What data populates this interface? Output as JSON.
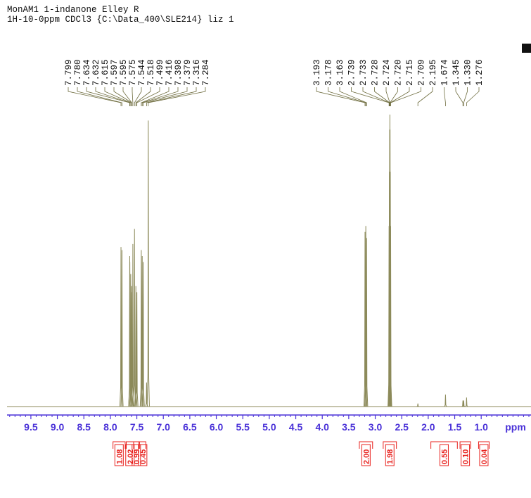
{
  "chart_data": {
    "type": "spectrum",
    "title": "MonAM1 1-indanone Elley R",
    "subtitle": "1H-10-0ppm CDCl3 {C:\\Data_400\\SLE214} liz 1",
    "x": [
      7.799,
      {
        "value": 7.78,
        "label": "7.780"
      },
      7.634,
      7.632,
      7.615,
      7.597,
      7.595,
      7.575,
      7.544,
      7.518,
      7.499,
      7.416,
      7.398,
      7.379,
      7.316,
      7.284,
      3.193,
      3.178,
      3.163,
      2.739,
      2.733,
      2.728,
      2.724,
      {
        "value": 2.72,
        "label": "2.720"
      },
      2.715,
      2.709,
      2.195,
      1.674,
      1.345,
      {
        "value": 1.33,
        "label": "1.330"
      },
      1.276
    ],
    "values": [
      53,
      52,
      50,
      48,
      44,
      40,
      38,
      54,
      59,
      40,
      38,
      52,
      50,
      48,
      8,
      95,
      58,
      60,
      56,
      60,
      78,
      92,
      97,
      92,
      78,
      60,
      1,
      4,
      2,
      2,
      3
    ],
    "color": "#8c8a5a",
    "xlabel": "ppm",
    "xlim": [
      9.95,
      0.06
    ],
    "ylim": [
      0,
      100
    ],
    "xticks": [
      9.5,
      {
        "value": 9,
        "label": "9.0"
      },
      8.5,
      {
        "value": 8,
        "label": "8.0"
      },
      7.5,
      {
        "value": 7,
        "label": "7.0"
      },
      6.5,
      {
        "value": 6,
        "label": "6.0"
      },
      5.5,
      {
        "value": 5,
        "label": "5.0"
      },
      4.5,
      {
        "value": 4,
        "label": "4.0"
      },
      3.5,
      {
        "value": 3,
        "label": "3.0"
      },
      2.5,
      {
        "value": 2,
        "label": "2.0"
      },
      1.5,
      {
        "value": 1,
        "label": "1.0"
      }
    ],
    "xminorticks": [
      9.9,
      9.8,
      9.7,
      9.6,
      9.4,
      9.3,
      9.2,
      9.1,
      8.9,
      8.8,
      8.7,
      8.6,
      8.4,
      8.3,
      8.2,
      8.1,
      7.9,
      7.8,
      7.7,
      7.6,
      7.4,
      7.3,
      7.2,
      7.1,
      6.9,
      6.8,
      6.7,
      6.6,
      6.4,
      6.3,
      6.2,
      6.1,
      5.9,
      5.8,
      5.7,
      5.6,
      5.4,
      5.3,
      5.2,
      5.1,
      4.9,
      4.8,
      4.7,
      4.6,
      4.4,
      4.3,
      4.2,
      4.1,
      3.9,
      3.8,
      3.7,
      3.6,
      3.4,
      3.3,
      3.2,
      3.1,
      2.9,
      2.8,
      2.7,
      2.6,
      2.4,
      2.3,
      2.2,
      2.1,
      1.9,
      1.8,
      1.7,
      1.6,
      1.4,
      1.3,
      1.2,
      1.1,
      0.9,
      0.8,
      0.7,
      0.6,
      0.5,
      0.4,
      0.3,
      0.2,
      0.1
    ],
    "axis_color": "#4a32d8",
    "integrals": [
      1.08,
      2.02,
      0.99,
      0.45,
      {
        "value": 2,
        "label": "2.00"
      },
      1.98,
      0.55,
      {
        "value": 0.1,
        "label": "0.10"
      },
      0.04
    ],
    "integral_ranges": [
      [
        7.95,
        7.72
      ],
      [
        7.7,
        7.56
      ],
      [
        7.56,
        7.46
      ],
      [
        7.45,
        7.33
      ],
      [
        3.3,
        3.05
      ],
      [
        2.85,
        2.6
      ],
      [
        1.95,
        1.45
      ],
      [
        1.4,
        1.2
      ],
      [
        1.05,
        0.85
      ]
    ],
    "integral_color": "#e8201c"
  }
}
